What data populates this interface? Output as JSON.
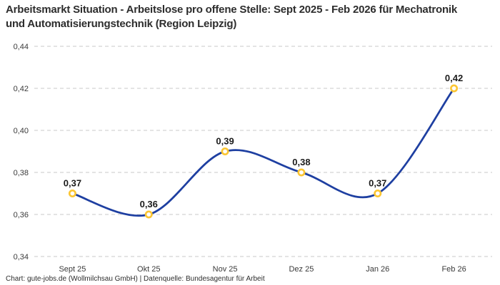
{
  "header": {
    "title": "Arbeitsmarkt Situation - Arbeitslose pro offene Stelle: Sept 2025 - Feb 2026 für Mechatronik und Automatisierungstechnik (Region Leipzig)"
  },
  "footer": {
    "credit": "Chart: gute-jobs.de (Wollmilchsau GmbH) | Datenquelle: Bundesagentur für Arbeit"
  },
  "chart_data": {
    "type": "line",
    "title": "Arbeitsmarkt Situation - Arbeitslose pro offene Stelle: Sept 2025 - Feb 2026 für Mechatronik und Automatisierungstechnik (Region Leipzig)",
    "categories": [
      "Sept 25",
      "Okt 25",
      "Nov 25",
      "Dez 25",
      "Jan 26",
      "Feb 26"
    ],
    "values": [
      0.37,
      0.36,
      0.39,
      0.38,
      0.37,
      0.42
    ],
    "point_labels": [
      "0,37",
      "0,36",
      "0,39",
      "0,38",
      "0,37",
      "0,42"
    ],
    "xlabel": "",
    "ylabel": "",
    "ylim": [
      0.34,
      0.44
    ],
    "ytick_values": [
      0.34,
      0.36,
      0.38,
      0.4,
      0.42,
      0.44
    ],
    "ytick_labels": [
      "0,34",
      "0,36",
      "0,38",
      "0,40",
      "0,42",
      "0,44"
    ],
    "grid": "horizontal-dashed",
    "legend": "none",
    "smooth": true,
    "colors": {
      "line": "#1e3fa1",
      "marker_ring": "#fcc632",
      "marker_fill": "#ffffff",
      "gridline": "#c9c9c9",
      "tick_text": "#3a3a3a",
      "data_label": "#1b1b1b",
      "title_text": "#2d2d2d",
      "background": "#ffffff"
    }
  }
}
